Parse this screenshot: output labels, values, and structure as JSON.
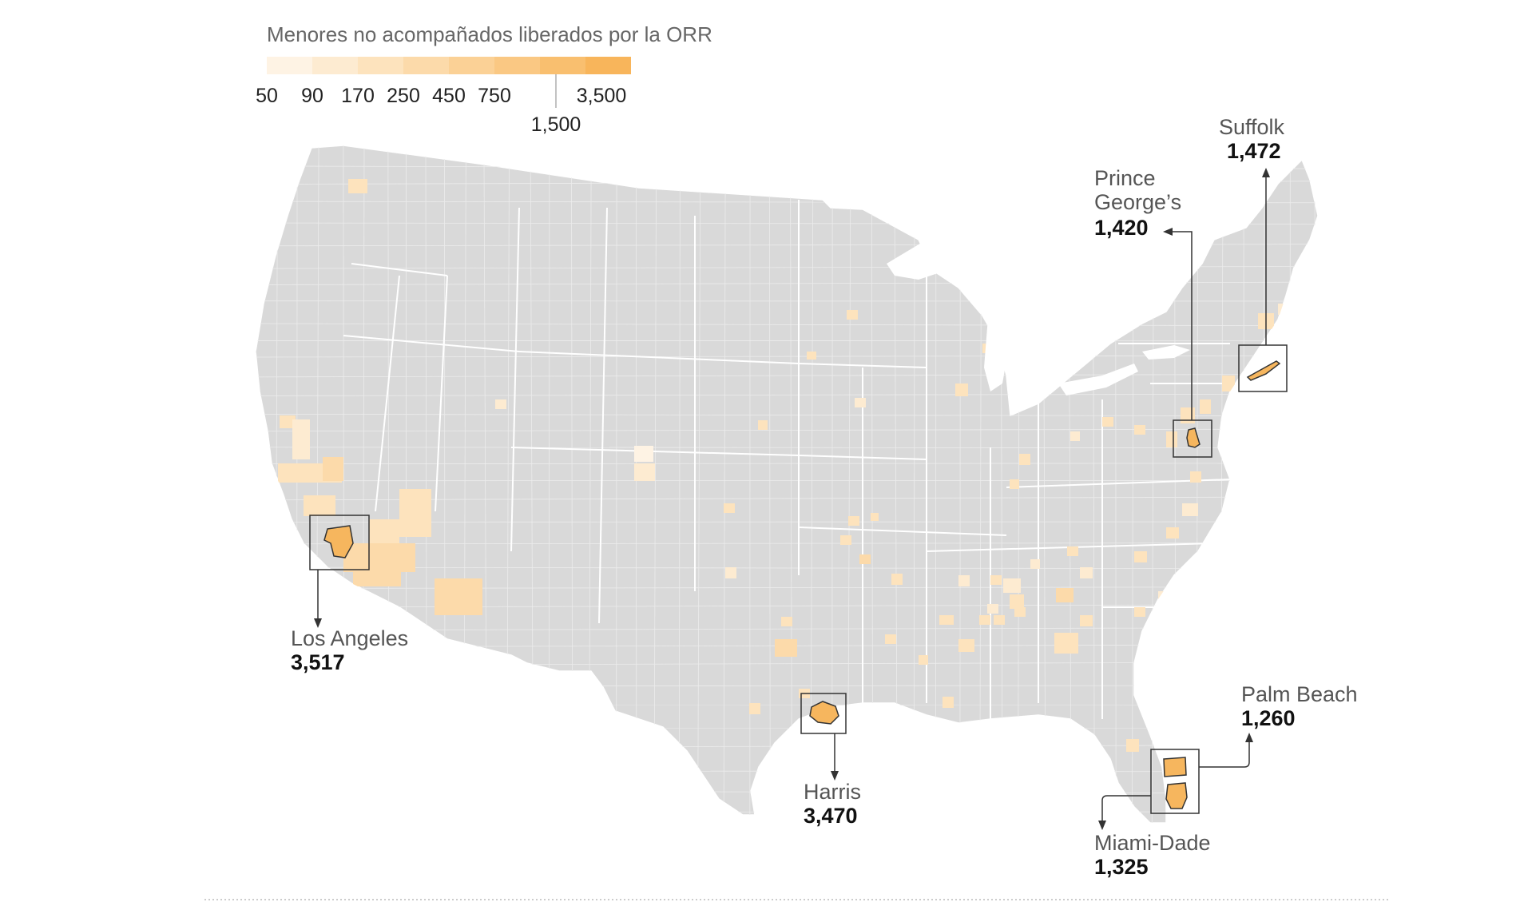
{
  "legend": {
    "title": "Menores no acompañados liberados por la ORR",
    "breaks": [
      "50",
      "90",
      "170",
      "250",
      "450",
      "750",
      "1,500",
      "3,500"
    ],
    "colors": [
      "#fef3e4",
      "#fdebd1",
      "#fde3bd",
      "#fcdaaa",
      "#fbd196",
      "#fac883",
      "#f9bf6f",
      "#f8b55b"
    ],
    "low_break_labels": [
      "50",
      "90",
      "170",
      "250",
      "450",
      "750"
    ],
    "mid_break_label": "1,500",
    "high_break_label": "3,500"
  },
  "map": {
    "base_color": "#d9d9d9",
    "boundary_color": "#ffffff",
    "highlight_color": "#f6b65e"
  },
  "callouts": [
    {
      "county": "Los Angeles",
      "value": "3,517"
    },
    {
      "county": "Harris",
      "value": "3,470"
    },
    {
      "county": "Suffolk",
      "value": "1,472"
    },
    {
      "county": "Prince",
      "county_line2": "George’s",
      "value": "1,420"
    },
    {
      "county": "Miami-Dade",
      "value": "1,325"
    },
    {
      "county": "Palm Beach",
      "value": "1,260"
    }
  ]
}
